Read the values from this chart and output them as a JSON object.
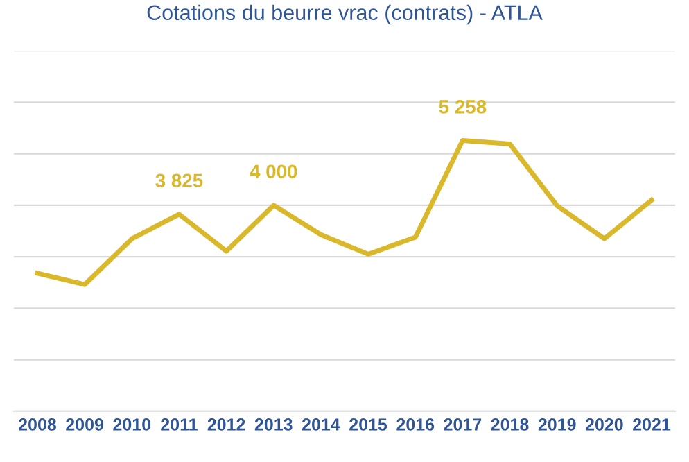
{
  "chart_data": {
    "type": "line",
    "title": "Cotations du beurre vrac (contrats) - ATLA",
    "x": [
      2008,
      2009,
      2010,
      2011,
      2012,
      2013,
      2014,
      2015,
      2016,
      2017,
      2018,
      2019,
      2020,
      2021
    ],
    "series": [
      {
        "color": "#d9b92b",
        "values": [
          2680,
          2460,
          3350,
          3825,
          3110,
          4000,
          3430,
          3050,
          3380,
          5258,
          5190,
          3990,
          3350,
          4100
        ],
        "value_labels": [
          null,
          null,
          null,
          "3 825",
          null,
          "4 000",
          null,
          null,
          null,
          "5 258",
          null,
          null,
          null,
          null
        ]
      }
    ],
    "xlim": [
      2007.5,
      2021.5
    ],
    "xticks": [
      2008,
      2009,
      2010,
      2011,
      2012,
      2013,
      2014,
      2015,
      2016,
      2017,
      2018,
      2019,
      2020,
      2021
    ],
    "ylim": [
      0,
      7000
    ],
    "yticks": [
      {
        "value": 0,
        "label": null
      },
      {
        "value": 1000,
        "label": null
      },
      {
        "value": 2000,
        "label": null
      },
      {
        "value": 3000,
        "label": null
      },
      {
        "value": 4000,
        "label": null
      },
      {
        "value": 5000,
        "label": null
      },
      {
        "value": 6000,
        "label": null
      },
      {
        "value": 7000,
        "label": null
      }
    ],
    "tick_labels": "x",
    "grid": "y",
    "marker": "none",
    "line_style": "solid"
  }
}
